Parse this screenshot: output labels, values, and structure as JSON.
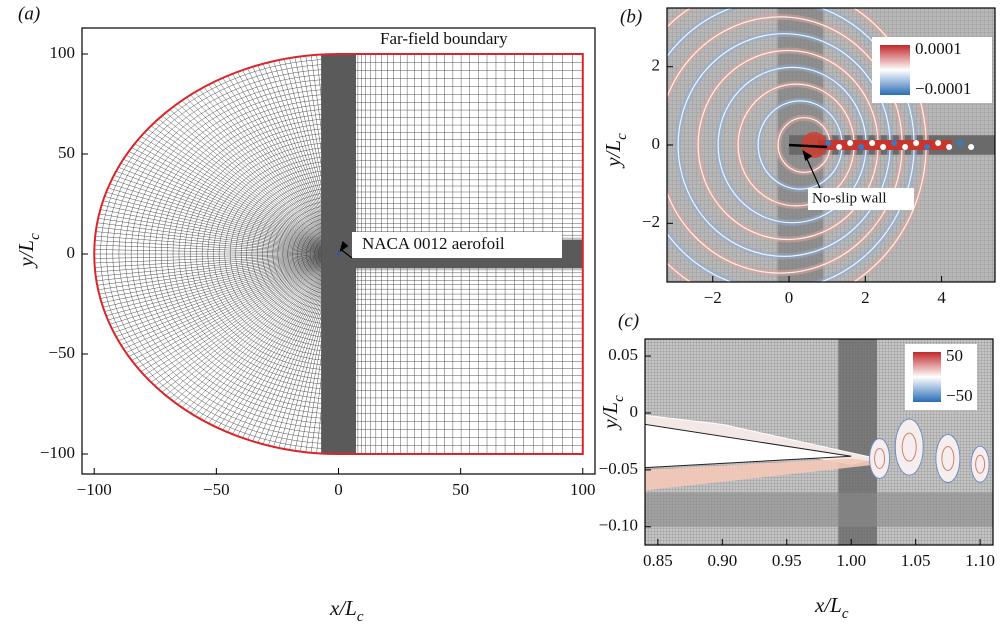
{
  "chart_data": [
    {
      "type": "mesh",
      "panel": "(a)",
      "xlabel": "x/L",
      "xlabel_sub": "c",
      "ylabel": "y/L",
      "ylabel_sub": "c",
      "xlim": [
        -105,
        105
      ],
      "ylim": [
        -110,
        113
      ],
      "xticks": [
        {
          "value": -100,
          "label": "−100"
        },
        {
          "value": -50,
          "label": "−50"
        },
        0,
        50,
        100
      ],
      "yticks": [
        {
          "value": -100,
          "label": "−100"
        },
        {
          "value": -50,
          "label": "−50"
        },
        0,
        50,
        100
      ],
      "annotations": [
        "Far-field boundary",
        "NACA 0012 aerofoil"
      ]
    },
    {
      "type": "contour",
      "panel": "(b)",
      "ylabel": "y/L",
      "ylabel_sub": "c",
      "xlim": [
        -3.2,
        5.4
      ],
      "ylim": [
        -3.5,
        3.5
      ],
      "xticks": [
        {
          "value": -2,
          "label": "−2"
        },
        0,
        2,
        4
      ],
      "yticks": [
        {
          "value": -2,
          "label": "−2"
        },
        0,
        2
      ],
      "clim": [
        -0.0001,
        0.0001
      ],
      "cticks": [
        0.0001,
        {
          "value": -0.0001,
          "label": "−0.0001"
        }
      ],
      "annotations": [
        "No-slip wall"
      ]
    },
    {
      "type": "contour",
      "panel": "(c)",
      "xlabel": "x/L",
      "xlabel_sub": "c",
      "ylabel": "y/L",
      "ylabel_sub": "c",
      "xlim": [
        0.84,
        1.11
      ],
      "ylim": [
        -0.116,
        0.065
      ],
      "xticks": [
        {
          "value": 0.85,
          "label": "0.85"
        },
        {
          "value": 0.9,
          "label": "0.90"
        },
        {
          "value": 0.95,
          "label": "0.95"
        },
        {
          "value": 1.0,
          "label": "1.00"
        },
        {
          "value": 1.05,
          "label": "1.05"
        },
        {
          "value": 1.1,
          "label": "1.10"
        }
      ],
      "yticks": [
        {
          "value": 0.05,
          "label": "0.05"
        },
        0,
        {
          "value": -0.05,
          "label": "−0.05"
        },
        {
          "value": -0.1,
          "label": "−0.10"
        }
      ],
      "clim": [
        -50,
        50
      ],
      "cticks": [
        50,
        {
          "value": -50,
          "label": "−50"
        }
      ]
    }
  ]
}
